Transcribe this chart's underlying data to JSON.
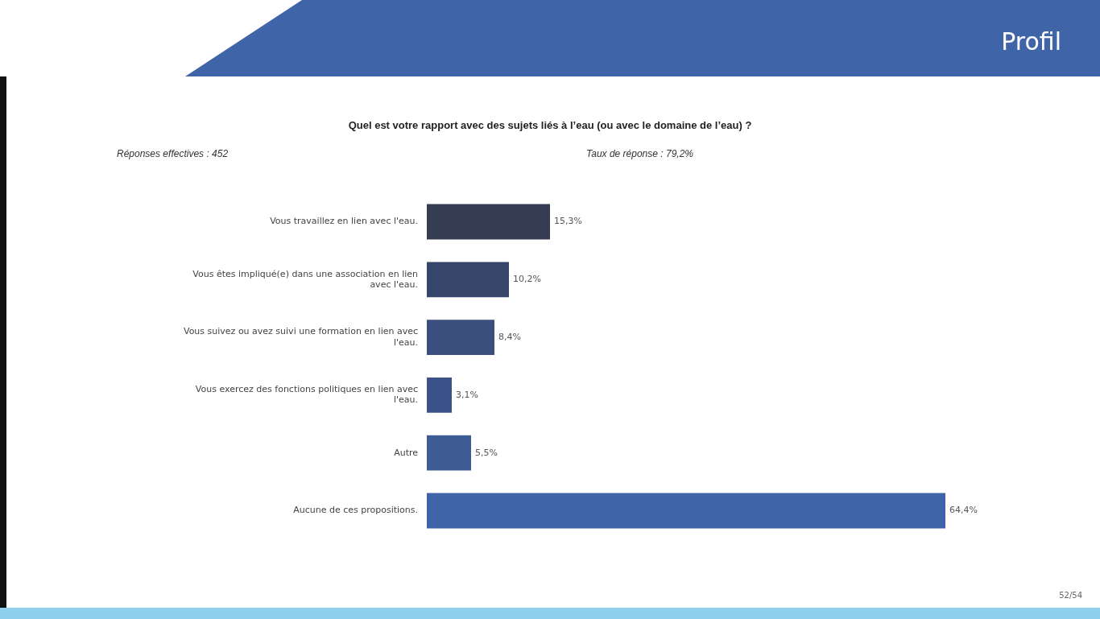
{
  "chart_data": {
    "type": "bar",
    "orientation": "horizontal",
    "title": "Quel est votre rapport avec des sujets liés à l’eau (ou avec le domaine de l’eau) ?",
    "categories": [
      "Vous travaillez en lien avec l'eau.",
      "Vous êtes impliqué(e) dans une association en lien avec l'eau.",
      "Vous suivez ou avez suivi une formation en lien avec l'eau.",
      "Vous exercez des fonctions politiques en lien avec l'eau.",
      "Autre",
      "Aucune de ces propositions."
    ],
    "values": [
      15.3,
      10.2,
      8.4,
      3.1,
      5.5,
      64.4
    ],
    "value_labels": [
      "15,3%",
      "10,2%",
      "8,4%",
      "3,1%",
      "5,5%",
      "64,4%"
    ],
    "colors": [
      "#363c52",
      "#36466b",
      "#3a4f7d",
      "#3b5289",
      "#3d5b94",
      "#4064a8"
    ],
    "tick_labels": "y",
    "legend": false,
    "annotations": [
      "Réponses effectives : 452",
      "Taux de réponse : 79,2%",
      "Profil",
      "52/54"
    ]
  }
}
